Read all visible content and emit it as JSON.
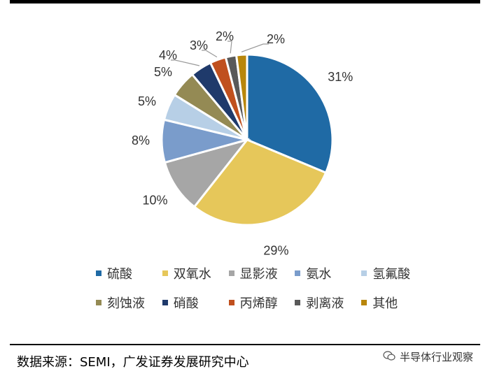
{
  "chart_data": {
    "type": "pie",
    "title": "",
    "series": [
      {
        "label": "硫酸",
        "value": 31,
        "color": "#1F6AA5"
      },
      {
        "label": "双氧水",
        "value": 29,
        "color": "#E6C75A"
      },
      {
        "label": "显影液",
        "value": 10,
        "color": "#A6A6A6"
      },
      {
        "label": "氨水",
        "value": 8,
        "color": "#7A9CCB"
      },
      {
        "label": "氢氟酸",
        "value": 5,
        "color": "#B7CFE6"
      },
      {
        "label": "刻蚀液",
        "value": 5,
        "color": "#948A54"
      },
      {
        "label": "硝酸",
        "value": 4,
        "color": "#1F3A6B"
      },
      {
        "label": "丙烯醇",
        "value": 3,
        "color": "#C0501E"
      },
      {
        "label": "剥离液",
        "value": 2,
        "color": "#595959"
      },
      {
        "label": "其他",
        "value": 2,
        "color": "#B8860B"
      }
    ],
    "data_labels": [
      "31%",
      "29%",
      "10%",
      "8%",
      "5%",
      "5%",
      "4%",
      "3%",
      "2%",
      "2%"
    ],
    "legend_position": "bottom"
  },
  "footer": {
    "source": "数据来源：SEMI，广发证券发展研究中心",
    "watermark": "半导体行业观察"
  }
}
